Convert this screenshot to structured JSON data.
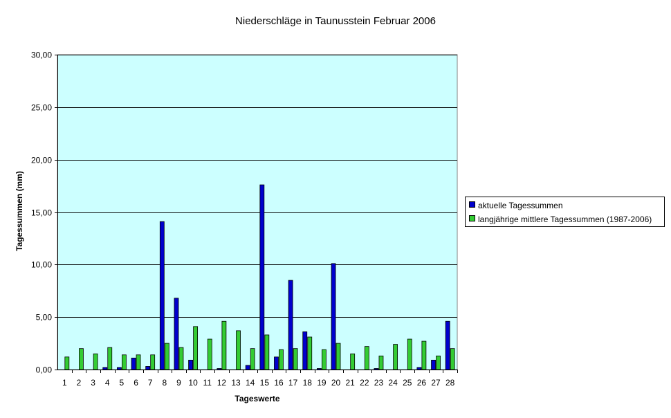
{
  "chart_data": {
    "type": "bar",
    "title": "Niederschläge in Taunusstein  Februar 2006",
    "xlabel": "Tageswerte",
    "ylabel": "Tagessummen (mm)",
    "categories": [
      "1",
      "2",
      "3",
      "4",
      "5",
      "6",
      "7",
      "8",
      "9",
      "10",
      "11",
      "12",
      "13",
      "14",
      "15",
      "16",
      "17",
      "18",
      "19",
      "20",
      "21",
      "22",
      "23",
      "24",
      "25",
      "26",
      "27",
      "28"
    ],
    "ylim": [
      0,
      30
    ],
    "yticks": [
      "0,00",
      "5,00",
      "10,00",
      "15,00",
      "20,00",
      "25,00",
      "30,00"
    ],
    "grid": true,
    "legend_position": "right",
    "plot_background": "#ccffff",
    "series": [
      {
        "name": "aktuelle Tagessummen",
        "color": "#0000cc",
        "values": [
          0,
          0,
          0,
          0.2,
          0.2,
          1.1,
          0.3,
          14.1,
          6.8,
          0.9,
          0,
          0.1,
          0,
          0.4,
          17.6,
          1.2,
          8.5,
          3.6,
          0.1,
          10.1,
          0,
          0,
          0.1,
          0,
          0,
          0.2,
          0.9,
          4.6
        ]
      },
      {
        "name": "langjährige mittlere Tagessummen (1987-2006)",
        "color": "#33cc33",
        "values": [
          1.2,
          2.0,
          1.5,
          2.1,
          1.4,
          1.4,
          1.4,
          2.5,
          2.1,
          4.1,
          2.9,
          4.6,
          3.7,
          2.0,
          3.3,
          1.9,
          2.0,
          3.1,
          1.9,
          2.5,
          1.5,
          2.2,
          1.3,
          2.4,
          2.9,
          2.7,
          1.3,
          2.0
        ]
      }
    ]
  }
}
